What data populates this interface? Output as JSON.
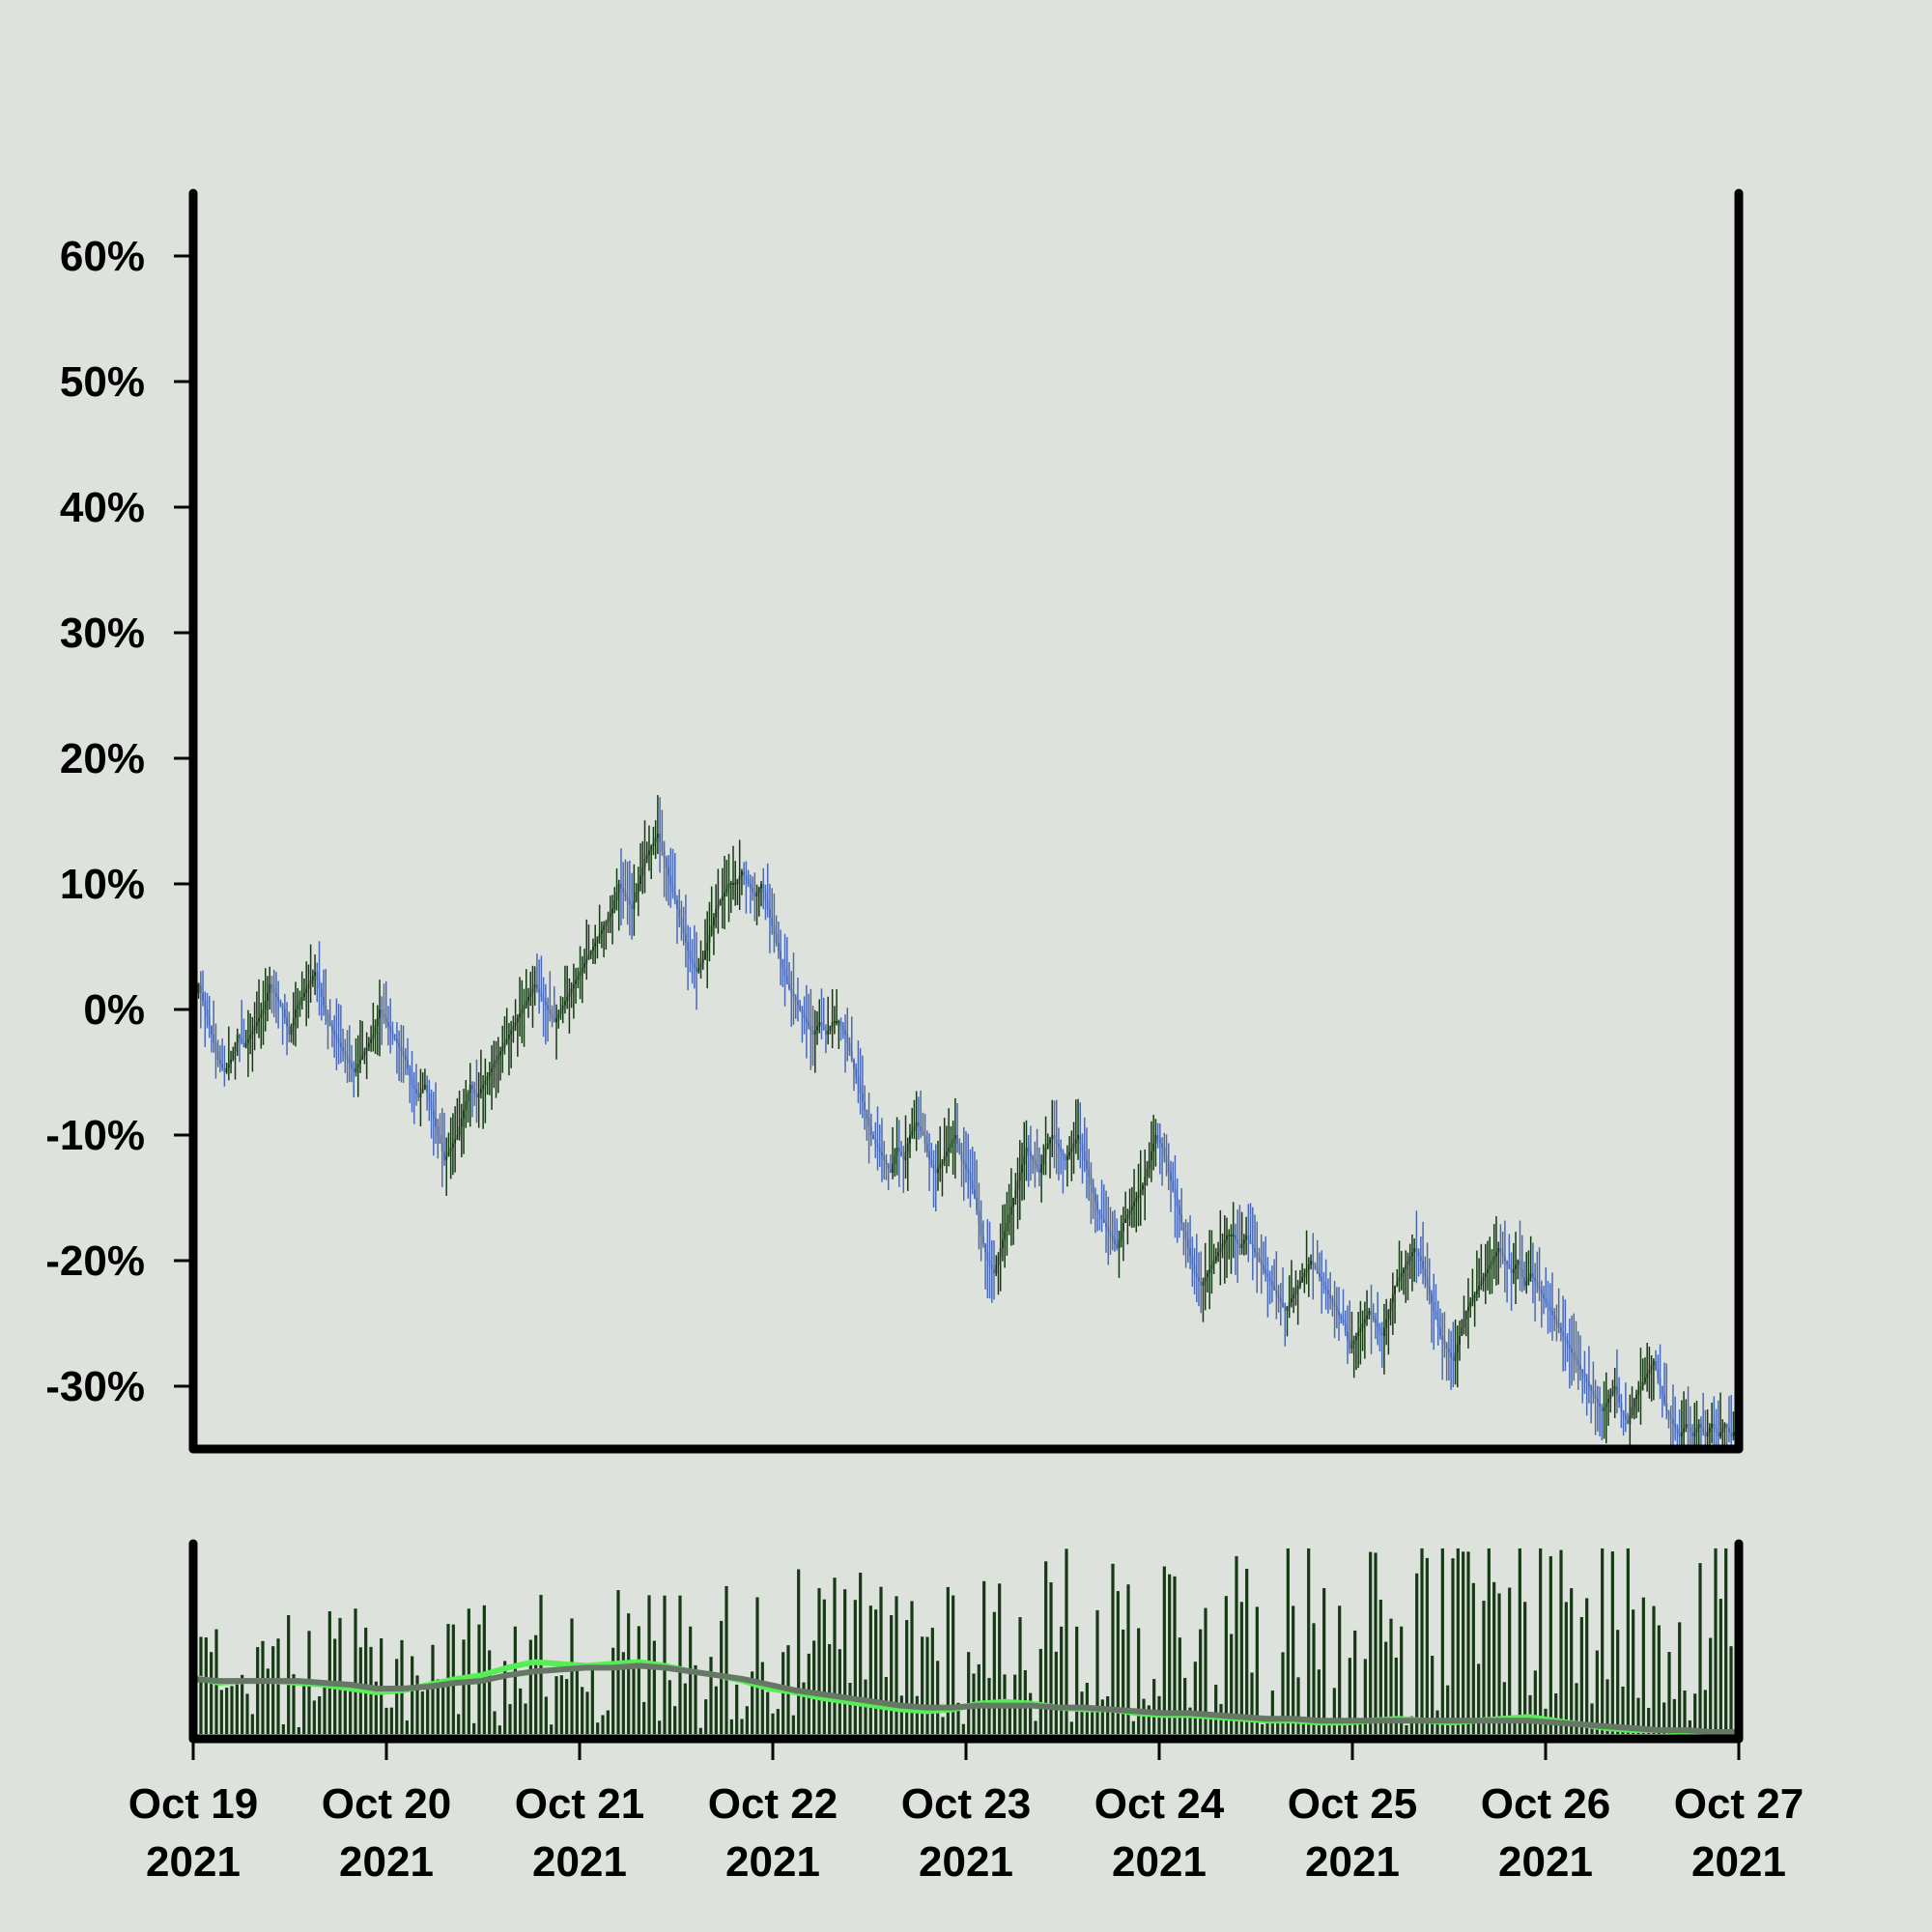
{
  "chart_data": {
    "type": "candlestick",
    "title": "",
    "xlabel": "",
    "ylabel": "",
    "ylim": [
      -35,
      65
    ],
    "y_ticks": [
      -30,
      -20,
      -10,
      0,
      10,
      20,
      30,
      40,
      50,
      60
    ],
    "y_tick_labels": [
      "-30%",
      "-20%",
      "-10%",
      "0%",
      "10%",
      "20%",
      "30%",
      "40%",
      "50%",
      "60%"
    ],
    "x_range": [
      "2021-10-19",
      "2021-10-27"
    ],
    "x_ticks": [
      {
        "date": "2021-10-19",
        "line1": "Oct 19",
        "line2": "2021"
      },
      {
        "date": "2021-10-20",
        "line1": "Oct 20",
        "line2": "2021"
      },
      {
        "date": "2021-10-21",
        "line1": "Oct 21",
        "line2": "2021"
      },
      {
        "date": "2021-10-22",
        "line1": "Oct 22",
        "line2": "2021"
      },
      {
        "date": "2021-10-23",
        "line1": "Oct 23",
        "line2": "2021"
      },
      {
        "date": "2021-10-24",
        "line1": "Oct 24",
        "line2": "2021"
      },
      {
        "date": "2021-10-25",
        "line1": "Oct 25",
        "line2": "2021"
      },
      {
        "date": "2021-10-26",
        "line1": "Oct 26",
        "line2": "2021"
      },
      {
        "date": "2021-10-27",
        "line1": "Oct 27",
        "line2": "2021"
      }
    ],
    "grid": false,
    "legend": "none",
    "candle_interval_hours": 1,
    "close_path_percent": [
      0,
      2,
      0,
      -2,
      -4,
      -5,
      -4,
      -2,
      -3,
      -2,
      -1,
      0,
      2,
      1,
      0,
      -2,
      0,
      1,
      2,
      3,
      1,
      -1,
      -2,
      -3,
      -4,
      -5,
      -4,
      -3,
      -2,
      0,
      -1,
      -2,
      -3,
      -4,
      -6,
      -7,
      -6,
      -8,
      -10,
      -12,
      -11,
      -10,
      -8,
      -6,
      -7,
      -6,
      -5,
      -4,
      -3,
      -2,
      -1,
      0,
      1,
      2,
      1,
      0,
      -1,
      0,
      1,
      2,
      3,
      4,
      5,
      6,
      7,
      8,
      10,
      9,
      8,
      10,
      12,
      13,
      14,
      12,
      10,
      8,
      6,
      4,
      3,
      4,
      6,
      8,
      9,
      10,
      10,
      11,
      10,
      9,
      10,
      8,
      6,
      4,
      2,
      1,
      0,
      -1,
      -2,
      -1,
      -2,
      -1,
      -1,
      -2,
      -4,
      -6,
      -8,
      -10,
      -11,
      -12,
      -13,
      -11,
      -12,
      -10,
      -9,
      -10,
      -12,
      -13,
      -12,
      -11,
      -10,
      -12,
      -13,
      -15,
      -18,
      -20,
      -21,
      -19,
      -17,
      -15,
      -13,
      -11,
      -12,
      -13,
      -11,
      -10,
      -11,
      -12,
      -11,
      -10,
      -12,
      -14,
      -16,
      -17,
      -18,
      -19,
      -17,
      -16,
      -15,
      -14,
      -12,
      -10,
      -11,
      -13,
      -15,
      -17,
      -19,
      -21,
      -22,
      -21,
      -20,
      -19,
      -18,
      -18,
      -19,
      -18,
      -19,
      -20,
      -21,
      -22,
      -23,
      -24,
      -23,
      -22,
      -21,
      -20,
      -21,
      -22,
      -23,
      -24,
      -25,
      -27,
      -26,
      -25,
      -24,
      -25,
      -26,
      -24,
      -22,
      -21,
      -20,
      -19,
      -20,
      -22,
      -24,
      -26,
      -27,
      -28,
      -26,
      -24,
      -23,
      -22,
      -21,
      -20,
      -19,
      -20,
      -21,
      -20,
      -22,
      -21,
      -22,
      -23,
      -24,
      -25,
      -26,
      -27,
      -28,
      -29,
      -30,
      -31,
      -32,
      -31,
      -30,
      -32,
      -33,
      -31,
      -30,
      -29,
      -28,
      -30,
      -32,
      -33,
      -34,
      -33,
      -34,
      -33,
      -34,
      -33,
      -34,
      -33,
      -34,
      -33
    ],
    "volume_pane": {
      "type": "bar",
      "series": [
        {
          "type": "bar"
        },
        {
          "type": "line",
          "color": "#55ee55"
        },
        {
          "type": "line",
          "color": "#667766"
        }
      ],
      "moving_average_level_fraction": [
        0.3,
        0.27,
        0.28,
        0.28,
        0.27,
        0.26,
        0.24,
        0.22,
        0.23,
        0.26,
        0.29,
        0.31,
        0.35,
        0.38,
        0.37,
        0.36,
        0.37,
        0.38,
        0.36,
        0.33,
        0.31,
        0.28,
        0.24,
        0.22,
        0.19,
        0.17,
        0.15,
        0.13,
        0.12,
        0.13,
        0.16,
        0.17,
        0.16,
        0.14,
        0.13,
        0.13,
        0.11,
        0.1,
        0.1,
        0.09,
        0.08,
        0.07,
        0.07,
        0.06,
        0.06,
        0.07,
        0.08,
        0.07,
        0.06,
        0.07,
        0.08,
        0.09,
        0.07,
        0.05,
        0.03,
        0.02,
        0.02,
        0.01,
        0.01,
        0.01
      ],
      "moving_average_long_fraction": [
        0.29,
        0.28,
        0.28,
        0.28,
        0.28,
        0.27,
        0.26,
        0.24,
        0.24,
        0.25,
        0.27,
        0.28,
        0.31,
        0.33,
        0.34,
        0.35,
        0.35,
        0.36,
        0.35,
        0.33,
        0.31,
        0.29,
        0.26,
        0.23,
        0.21,
        0.19,
        0.17,
        0.15,
        0.14,
        0.14,
        0.15,
        0.15,
        0.15,
        0.14,
        0.14,
        0.13,
        0.12,
        0.11,
        0.11,
        0.1,
        0.09,
        0.08,
        0.08,
        0.07,
        0.07,
        0.07,
        0.07,
        0.07,
        0.07,
        0.07,
        0.07,
        0.07,
        0.06,
        0.05,
        0.04,
        0.03,
        0.02,
        0.02,
        0.01,
        0.01
      ]
    },
    "colors": {
      "background": "#dde2dc",
      "up_candle": "#163a14",
      "down_candle": "#4a6ab8",
      "volume_bar": "#163a14",
      "axis": "#000000"
    }
  }
}
